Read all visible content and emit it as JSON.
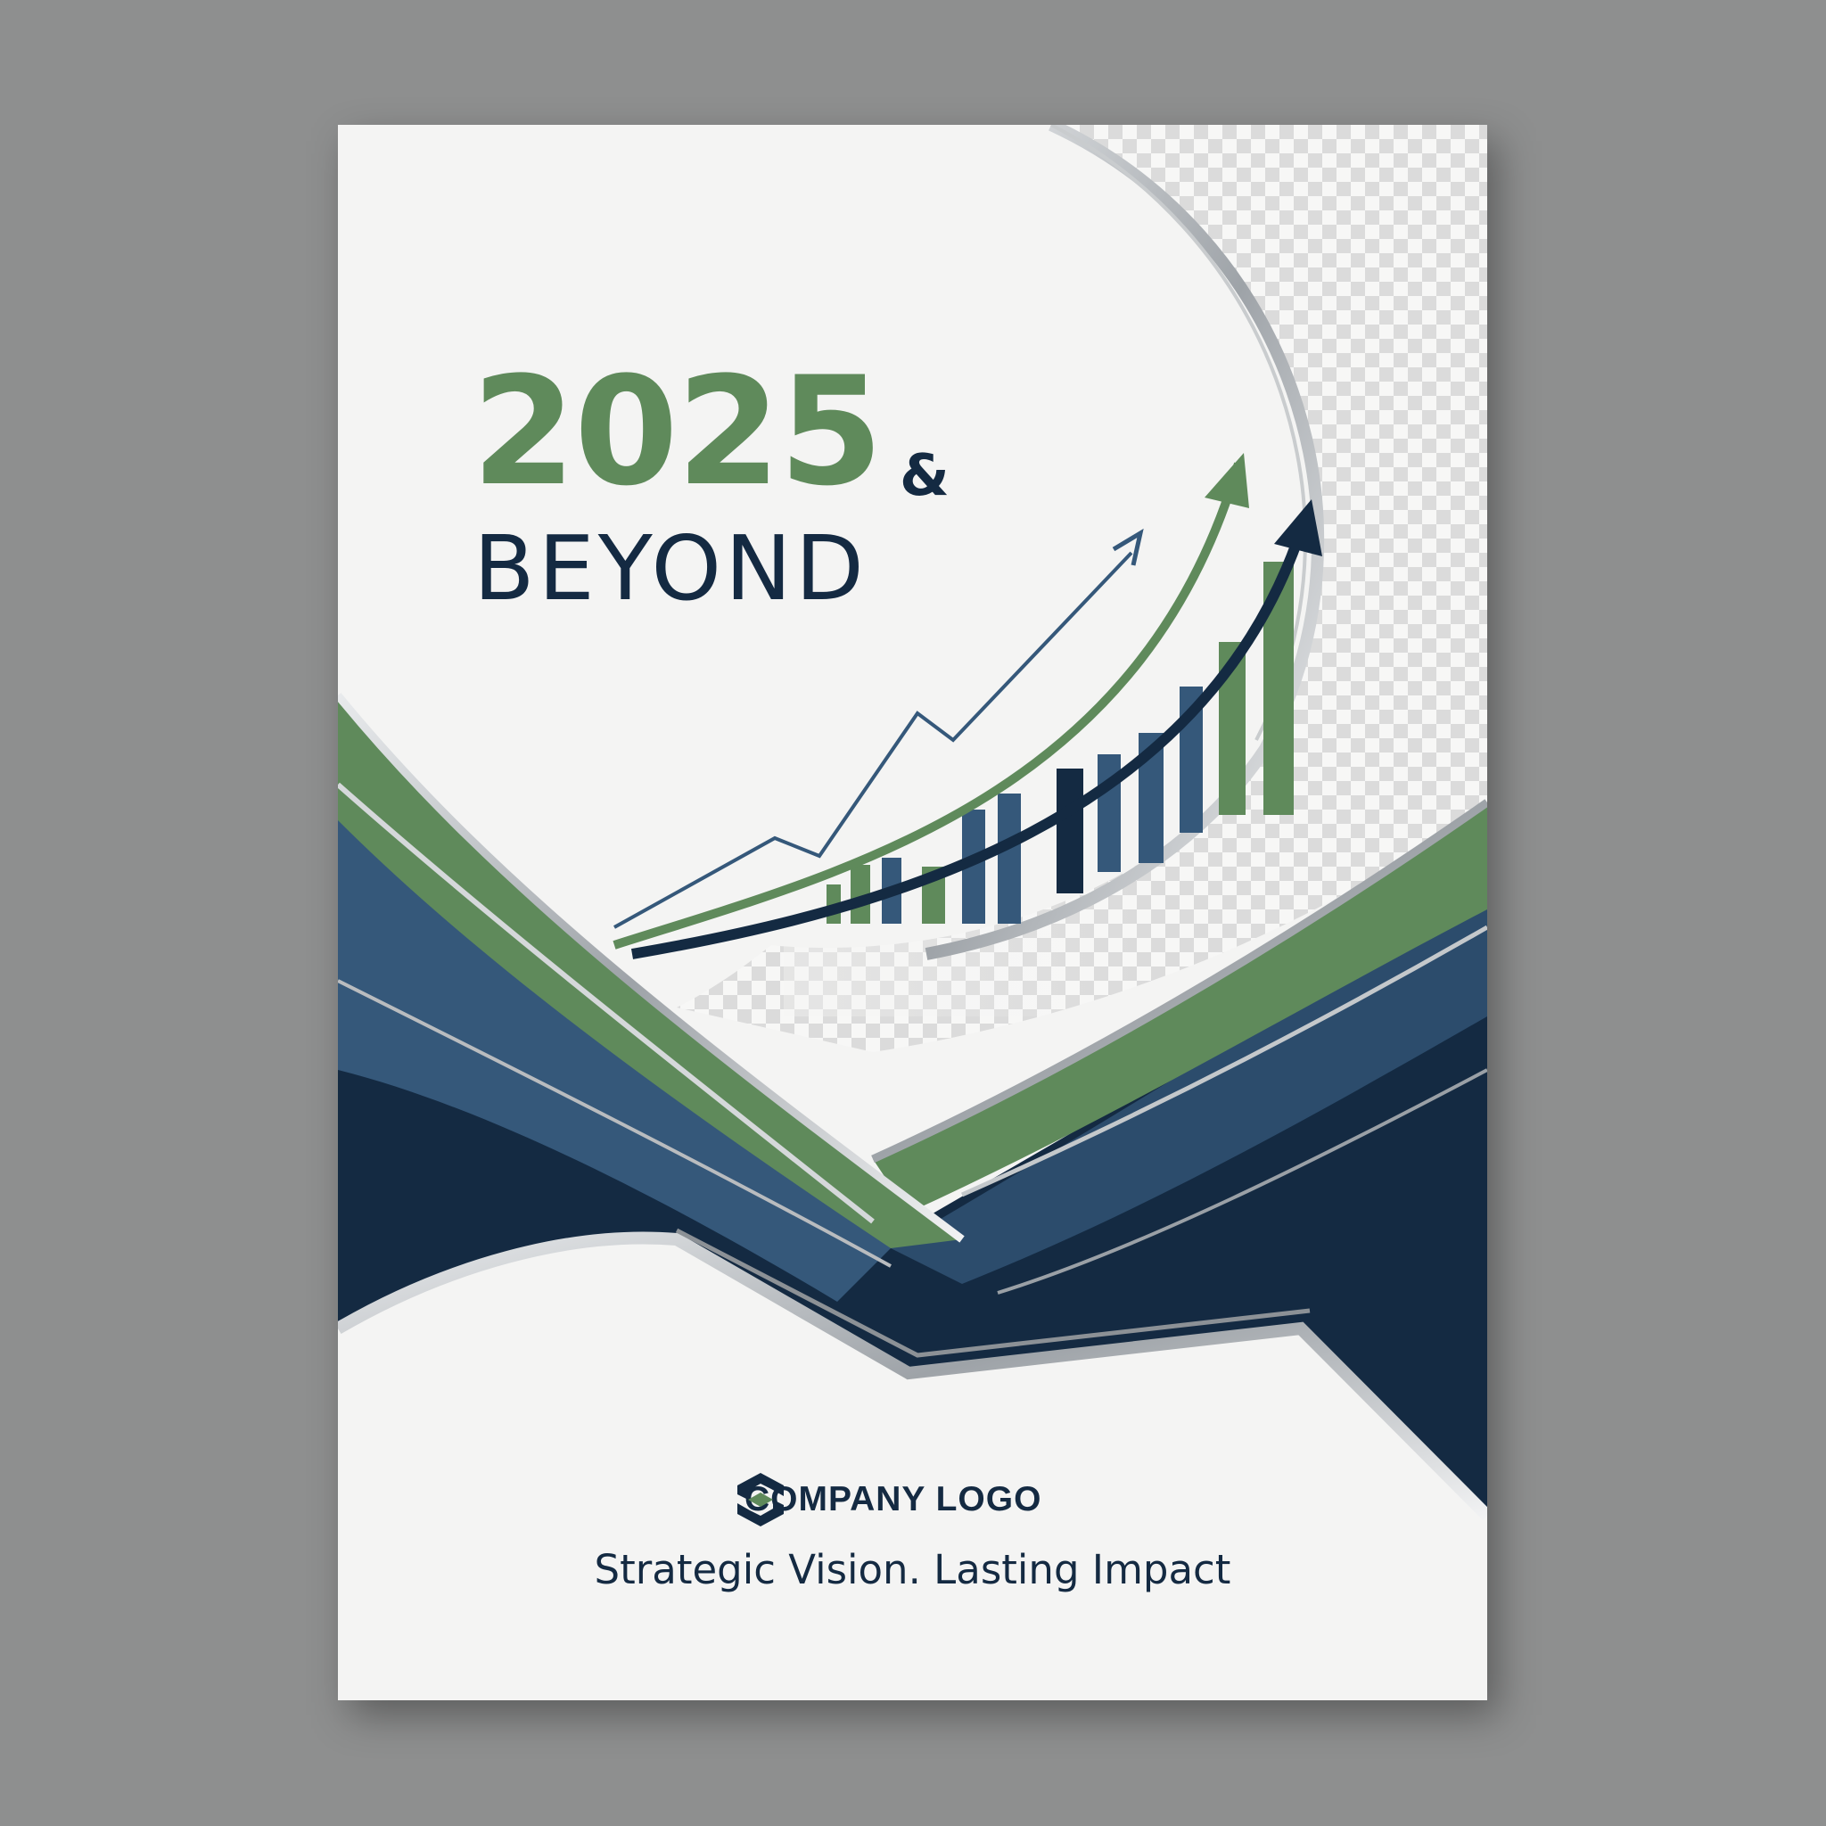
{
  "cover": {
    "title_year": "2025",
    "title_amp": "&",
    "title_word": "BEYOND",
    "logo_label": "COMPANY LOGO",
    "tagline": "Strategic Vision. Lasting Impact"
  },
  "colors": {
    "green": "#5f8a5b",
    "navy": "#142a42",
    "steel_blue": "#35587a",
    "page": "#f4f4f3",
    "silver": "#b9bcbf",
    "background": "#8e8f8f"
  },
  "icons": {
    "logo": "hexagon-link-icon",
    "arrows": "growth-arrow-icon"
  }
}
